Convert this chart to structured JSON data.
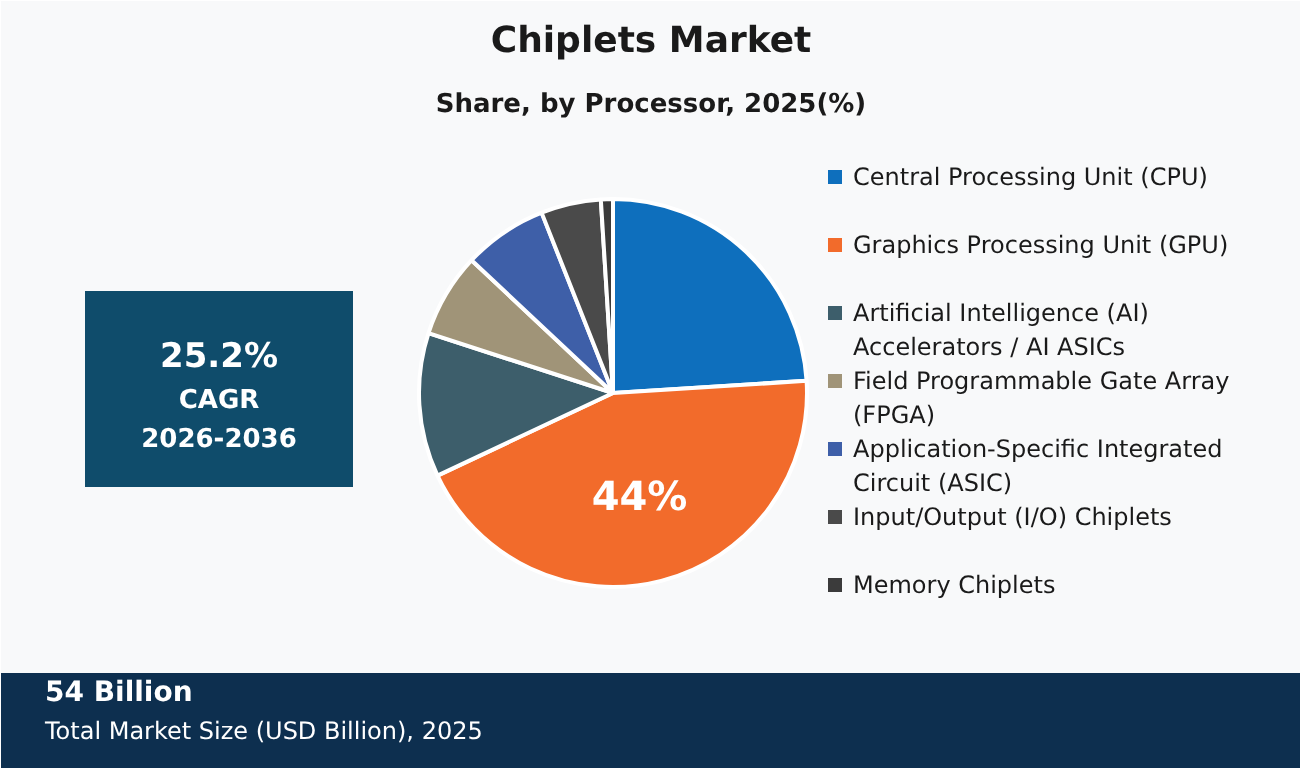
{
  "chart_data": {
    "type": "pie",
    "title": "Chiplets Market",
    "subtitle": "Share, by Processor, 2025(%)",
    "categories": [
      "Central Processing Unit (CPU)",
      "Graphics Processing Unit (GPU)",
      "Artificial Intelligence (AI) Accelerators / AI ASICs",
      "Field Programmable Gate Array (FPGA)",
      "Application-Specific Integrated Circuit (ASIC)",
      "Input/Output (I/O) Chiplets",
      "Memory Chiplets"
    ],
    "values": [
      24,
      44,
      12,
      7,
      7,
      5,
      1
    ],
    "colors": [
      "#0e6fbd",
      "#f26b2b",
      "#3d5e6b",
      "#a09478",
      "#3e5fa8",
      "#4a4a4a",
      "#3b3b3b"
    ],
    "value_labels": [
      null,
      "44%",
      null,
      null,
      null,
      null,
      null
    ],
    "legend": "right",
    "annotations": [
      "25.2%",
      "CAGR",
      "2026-2036",
      "54 Billion",
      "Total Market Size (USD Billion), 2025"
    ]
  }
}
